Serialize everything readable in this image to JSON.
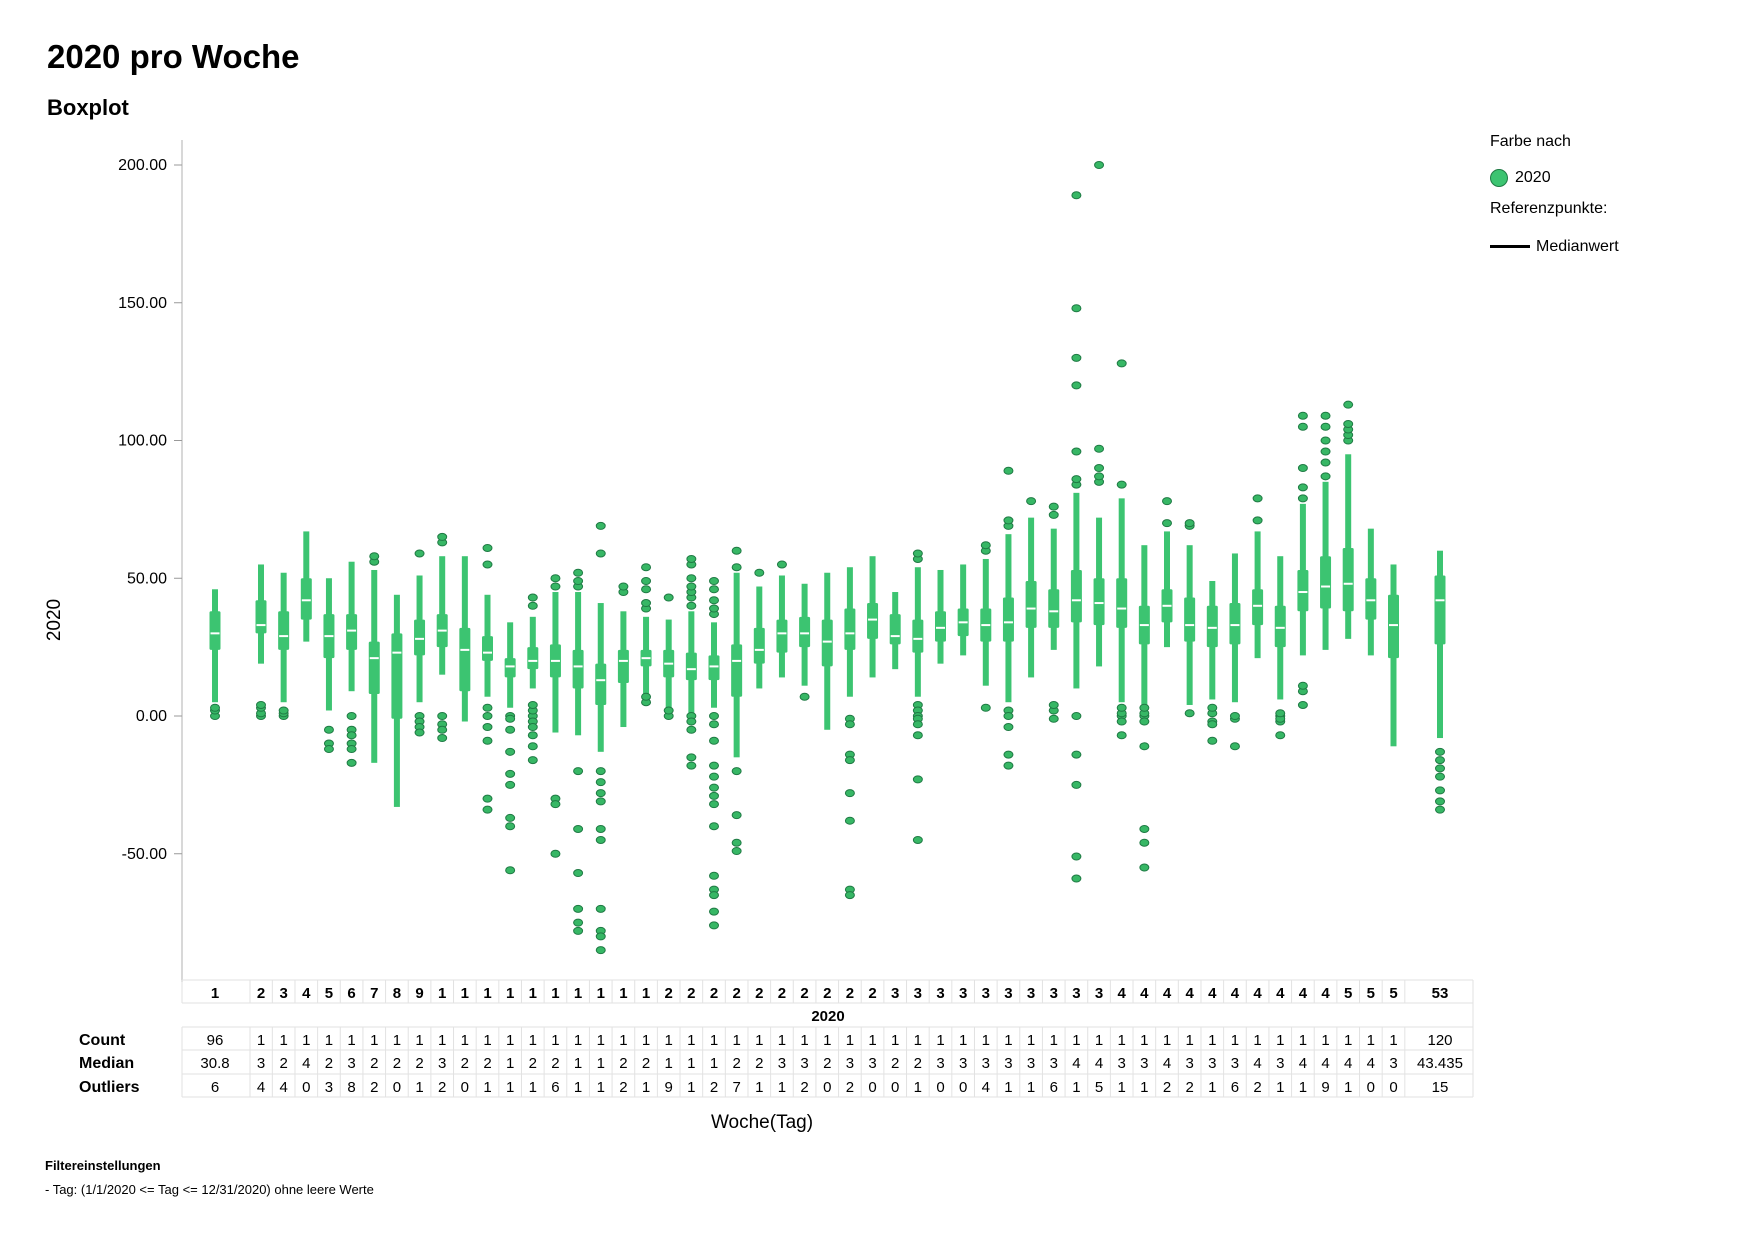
{
  "title": "2020 pro Woche",
  "subtitle": "Boxplot",
  "legend": {
    "color_title": "Farbe nach",
    "series_label": "2020",
    "ref_title": "Referenzpunkte:",
    "ref_label": "Medianwert"
  },
  "filter": {
    "title": "Filtereinstellungen",
    "text": "-  Tag: (1/1/2020 <= Tag <= 12/31/2020) ohne leere Werte"
  },
  "table": {
    "row_labels": [
      "Count",
      "Median",
      "Outliers"
    ],
    "group_label": "2020"
  },
  "colors": {
    "box": "#3cc471",
    "box_edge": "#2f9e5a",
    "outlier": "#37b765",
    "outlier_edge": "#1f7a44",
    "median": "#ffffff",
    "grid": "#cccccc"
  },
  "chart_data": {
    "type": "boxplot",
    "title": "2020 pro Woche",
    "subtitle": "Boxplot",
    "xlabel": "Woche(Tag)",
    "ylabel": "2020",
    "ylim": [
      -95,
      210
    ],
    "yticks": [
      "200.00",
      "150.00",
      "100.00",
      "50.00",
      "0.00",
      "-50.00"
    ],
    "ytick_values": [
      200,
      150,
      100,
      50,
      0,
      -50
    ],
    "week_labels": [
      "1",
      "2",
      "3",
      "4",
      "5",
      "6",
      "7",
      "8",
      "9",
      "1",
      "1",
      "1",
      "1",
      "1",
      "1",
      "1",
      "1",
      "1",
      "1",
      "2",
      "2",
      "2",
      "2",
      "2",
      "2",
      "2",
      "2",
      "2",
      "2",
      "3",
      "3",
      "3",
      "3",
      "3",
      "3",
      "3",
      "3",
      "3",
      "3",
      "4",
      "4",
      "4",
      "4",
      "4",
      "4",
      "4",
      "4",
      "4",
      "4",
      "5",
      "5",
      "5",
      "53"
    ],
    "count_labels": [
      "96",
      "1",
      "1",
      "1",
      "1",
      "1",
      "1",
      "1",
      "1",
      "1",
      "1",
      "1",
      "1",
      "1",
      "1",
      "1",
      "1",
      "1",
      "1",
      "1",
      "1",
      "1",
      "1",
      "1",
      "1",
      "1",
      "1",
      "1",
      "1",
      "1",
      "1",
      "1",
      "1",
      "1",
      "1",
      "1",
      "1",
      "1",
      "1",
      "1",
      "1",
      "1",
      "1",
      "1",
      "1",
      "1",
      "1",
      "1",
      "1",
      "1",
      "1",
      "1",
      "120"
    ],
    "median_labels": [
      "30.8",
      "3",
      "2",
      "4",
      "2",
      "3",
      "2",
      "2",
      "2",
      "3",
      "2",
      "2",
      "1",
      "2",
      "2",
      "1",
      "1",
      "2",
      "2",
      "1",
      "1",
      "1",
      "2",
      "2",
      "3",
      "3",
      "2",
      "3",
      "3",
      "2",
      "2",
      "3",
      "3",
      "3",
      "3",
      "3",
      "3",
      "4",
      "4",
      "3",
      "3",
      "4",
      "3",
      "3",
      "3",
      "4",
      "3",
      "4",
      "4",
      "4",
      "4",
      "3",
      "43.435"
    ],
    "outlier_labels": [
      "6",
      "4",
      "4",
      "0",
      "3",
      "8",
      "2",
      "0",
      "1",
      "2",
      "0",
      "1",
      "1",
      "1",
      "6",
      "1",
      "1",
      "2",
      "1",
      "9",
      "1",
      "2",
      "7",
      "1",
      "1",
      "2",
      "0",
      "2",
      "0",
      "0",
      "1",
      "0",
      "0",
      "4",
      "1",
      "1",
      "6",
      "1",
      "5",
      "1",
      "1",
      "2",
      "2",
      "1",
      "6",
      "2",
      "1",
      "1",
      "9",
      "1",
      "0",
      "0",
      "15"
    ],
    "boxes": [
      {
        "w": 1,
        "min": 5,
        "q1": 24,
        "median": 30,
        "q3": 38,
        "max": 46,
        "outliers": [
          0,
          2,
          3
        ]
      },
      {
        "w": 2,
        "min": 19,
        "q1": 30,
        "median": 33,
        "q3": 42,
        "max": 55,
        "outliers": [
          0,
          1,
          3,
          4
        ]
      },
      {
        "w": 3,
        "min": 5,
        "q1": 24,
        "median": 29,
        "q3": 38,
        "max": 52,
        "outliers": [
          0,
          1,
          2
        ]
      },
      {
        "w": 4,
        "min": 27,
        "q1": 35,
        "median": 42,
        "q3": 50,
        "max": 67,
        "outliers": []
      },
      {
        "w": 5,
        "min": 2,
        "q1": 21,
        "median": 29,
        "q3": 37,
        "max": 50,
        "outliers": [
          -5,
          -10,
          -12
        ]
      },
      {
        "w": 6,
        "min": 9,
        "q1": 24,
        "median": 31,
        "q3": 37,
        "max": 56,
        "outliers": [
          0,
          -5,
          -7,
          -10,
          -12,
          -17
        ]
      },
      {
        "w": 7,
        "min": -17,
        "q1": 8,
        "median": 21,
        "q3": 27,
        "max": 53,
        "outliers": [
          56,
          58
        ]
      },
      {
        "w": 8,
        "min": -33,
        "q1": -1,
        "median": 23,
        "q3": 30,
        "max": 44,
        "outliers": []
      },
      {
        "w": 9,
        "min": 5,
        "q1": 22,
        "median": 28,
        "q3": 35,
        "max": 51,
        "outliers": [
          0,
          -2,
          -4,
          -6,
          59
        ]
      },
      {
        "w": 10,
        "min": 15,
        "q1": 25,
        "median": 31,
        "q3": 37,
        "max": 58,
        "outliers": [
          0,
          -3,
          -5,
          -8,
          63,
          65
        ]
      },
      {
        "w": 11,
        "min": -2,
        "q1": 9,
        "median": 24,
        "q3": 32,
        "max": 58,
        "outliers": []
      },
      {
        "w": 12,
        "min": 7,
        "q1": 20,
        "median": 23,
        "q3": 29,
        "max": 44,
        "outliers": [
          3,
          0,
          -4,
          -9,
          -30,
          -34,
          55,
          61
        ]
      },
      {
        "w": 13,
        "min": 3,
        "q1": 14,
        "median": 18,
        "q3": 21,
        "max": 34,
        "outliers": [
          0,
          -1,
          -5,
          -13,
          -21,
          -25,
          -37,
          -40,
          -56
        ]
      },
      {
        "w": 14,
        "min": 10,
        "q1": 17,
        "median": 20,
        "q3": 25,
        "max": 36,
        "outliers": [
          0,
          -2,
          -4,
          -7,
          -11,
          -16,
          2,
          4,
          40,
          43
        ]
      },
      {
        "w": 15,
        "min": -6,
        "q1": 14,
        "median": 20,
        "q3": 26,
        "max": 45,
        "outliers": [
          -30,
          -32,
          -50,
          47,
          50
        ]
      },
      {
        "w": 16,
        "min": -7,
        "q1": 10,
        "median": 18,
        "q3": 24,
        "max": 45,
        "outliers": [
          -20,
          -41,
          -57,
          -70,
          -75,
          -78,
          47,
          49,
          52
        ]
      },
      {
        "w": 17,
        "min": -13,
        "q1": 4,
        "median": 13,
        "q3": 19,
        "max": 41,
        "outliers": [
          -20,
          -24,
          -28,
          -31,
          -41,
          -45,
          -70,
          -78,
          -80,
          -85,
          59,
          69
        ]
      },
      {
        "w": 18,
        "min": -4,
        "q1": 12,
        "median": 20,
        "q3": 24,
        "max": 38,
        "outliers": [
          45,
          47
        ]
      },
      {
        "w": 19,
        "min": 7,
        "q1": 18,
        "median": 21,
        "q3": 24,
        "max": 36,
        "outliers": [
          5,
          7,
          39,
          41,
          46,
          49,
          54
        ]
      },
      {
        "w": 20,
        "min": 2,
        "q1": 14,
        "median": 19,
        "q3": 24,
        "max": 35,
        "outliers": [
          0,
          2,
          43
        ]
      },
      {
        "w": 21,
        "min": 1,
        "q1": 13,
        "median": 17,
        "q3": 23,
        "max": 38,
        "outliers": [
          0,
          -2,
          -5,
          -15,
          -18,
          40,
          43,
          45,
          47,
          50,
          55,
          57
        ]
      },
      {
        "w": 22,
        "min": 3,
        "q1": 13,
        "median": 18,
        "q3": 22,
        "max": 34,
        "outliers": [
          0,
          -3,
          -9,
          -18,
          -22,
          -26,
          -29,
          -32,
          -40,
          -58,
          -63,
          -65,
          -71,
          -76,
          37,
          39,
          42,
          46,
          49
        ]
      },
      {
        "w": 23,
        "min": -15,
        "q1": 7,
        "median": 20,
        "q3": 26,
        "max": 52,
        "outliers": [
          -20,
          -36,
          -46,
          -49,
          54,
          60
        ]
      },
      {
        "w": 24,
        "min": 10,
        "q1": 19,
        "median": 24,
        "q3": 32,
        "max": 47,
        "outliers": [
          52
        ]
      },
      {
        "w": 25,
        "min": 14,
        "q1": 23,
        "median": 30,
        "q3": 35,
        "max": 51,
        "outliers": [
          55
        ]
      },
      {
        "w": 26,
        "min": 11,
        "q1": 25,
        "median": 30,
        "q3": 36,
        "max": 48,
        "outliers": [
          7
        ]
      },
      {
        "w": 27,
        "min": -5,
        "q1": 18,
        "median": 27,
        "q3": 35,
        "max": 52,
        "outliers": []
      },
      {
        "w": 28,
        "min": 7,
        "q1": 24,
        "median": 30,
        "q3": 39,
        "max": 54,
        "outliers": [
          -1,
          -3,
          -14,
          -16,
          -28,
          -38,
          -63,
          -65
        ]
      },
      {
        "w": 29,
        "min": 14,
        "q1": 28,
        "median": 35,
        "q3": 41,
        "max": 58,
        "outliers": []
      },
      {
        "w": 30,
        "min": 17,
        "q1": 26,
        "median": 29,
        "q3": 37,
        "max": 45,
        "outliers": []
      },
      {
        "w": 31,
        "min": 7,
        "q1": 23,
        "median": 28,
        "q3": 35,
        "max": 54,
        "outliers": [
          4,
          2,
          0,
          -1,
          -3,
          -7,
          -23,
          -45,
          57,
          59
        ]
      },
      {
        "w": 32,
        "min": 19,
        "q1": 27,
        "median": 32,
        "q3": 38,
        "max": 53,
        "outliers": []
      },
      {
        "w": 33,
        "min": 22,
        "q1": 29,
        "median": 34,
        "q3": 39,
        "max": 55,
        "outliers": []
      },
      {
        "w": 34,
        "min": 11,
        "q1": 27,
        "median": 33,
        "q3": 39,
        "max": 57,
        "outliers": [
          3,
          60,
          62
        ]
      },
      {
        "w": 35,
        "min": 5,
        "q1": 27,
        "median": 34,
        "q3": 43,
        "max": 66,
        "outliers": [
          2,
          0,
          -4,
          -14,
          -18,
          69,
          71,
          89
        ]
      },
      {
        "w": 36,
        "min": 14,
        "q1": 32,
        "median": 39,
        "q3": 49,
        "max": 72,
        "outliers": [
          78
        ]
      },
      {
        "w": 37,
        "min": 24,
        "q1": 32,
        "median": 38,
        "q3": 46,
        "max": 68,
        "outliers": [
          -1,
          2,
          4,
          73,
          76
        ]
      },
      {
        "w": 38,
        "min": 10,
        "q1": 34,
        "median": 42,
        "q3": 53,
        "max": 81,
        "outliers": [
          0,
          -14,
          -25,
          -51,
          -59,
          84,
          86,
          96,
          120,
          130,
          148,
          189
        ]
      },
      {
        "w": 39,
        "min": 18,
        "q1": 33,
        "median": 41,
        "q3": 50,
        "max": 72,
        "outliers": [
          85,
          87,
          90,
          97,
          200
        ]
      },
      {
        "w": 40,
        "min": 5,
        "q1": 32,
        "median": 39,
        "q3": 50,
        "max": 79,
        "outliers": [
          0,
          -2,
          -7,
          1,
          3,
          84,
          128
        ]
      },
      {
        "w": 41,
        "min": 4,
        "q1": 26,
        "median": 33,
        "q3": 40,
        "max": 62,
        "outliers": [
          0,
          -2,
          -11,
          -41,
          -46,
          -55,
          1,
          3
        ]
      },
      {
        "w": 42,
        "min": 25,
        "q1": 34,
        "median": 40,
        "q3": 46,
        "max": 67,
        "outliers": [
          70,
          78
        ]
      },
      {
        "w": 43,
        "min": 4,
        "q1": 27,
        "median": 33,
        "q3": 43,
        "max": 62,
        "outliers": [
          1,
          69,
          70
        ]
      },
      {
        "w": 44,
        "min": 6,
        "q1": 25,
        "median": 32,
        "q3": 40,
        "max": 49,
        "outliers": [
          1,
          -2,
          -3,
          -9,
          3
        ]
      },
      {
        "w": 45,
        "min": 5,
        "q1": 26,
        "median": 33,
        "q3": 41,
        "max": 59,
        "outliers": [
          -1,
          -11,
          0
        ]
      },
      {
        "w": 46,
        "min": 21,
        "q1": 33,
        "median": 40,
        "q3": 46,
        "max": 67,
        "outliers": [
          71,
          79
        ]
      },
      {
        "w": 47,
        "min": 6,
        "q1": 25,
        "median": 32,
        "q3": 40,
        "max": 58,
        "outliers": [
          0,
          -2,
          -7,
          -1,
          1
        ]
      },
      {
        "w": 48,
        "min": 22,
        "q1": 38,
        "median": 45,
        "q3": 53,
        "max": 77,
        "outliers": [
          4,
          9,
          11,
          79,
          83,
          90,
          105,
          109
        ]
      },
      {
        "w": 49,
        "min": 24,
        "q1": 39,
        "median": 47,
        "q3": 58,
        "max": 85,
        "outliers": [
          87,
          92,
          96,
          100,
          105,
          109
        ]
      },
      {
        "w": 50,
        "min": 28,
        "q1": 38,
        "median": 48,
        "q3": 61,
        "max": 95,
        "outliers": [
          100,
          102,
          104,
          106,
          113
        ]
      },
      {
        "w": 51,
        "min": 22,
        "q1": 35,
        "median": 42,
        "q3": 50,
        "max": 68,
        "outliers": []
      },
      {
        "w": 52,
        "min": -11,
        "q1": 21,
        "median": 33,
        "q3": 44,
        "max": 55,
        "outliers": []
      },
      {
        "w": 53,
        "min": -8,
        "q1": 26,
        "median": 42,
        "q3": 51,
        "max": 60,
        "outliers": [
          -13,
          -16,
          -19,
          -22,
          -27,
          -31,
          -34
        ]
      }
    ]
  }
}
